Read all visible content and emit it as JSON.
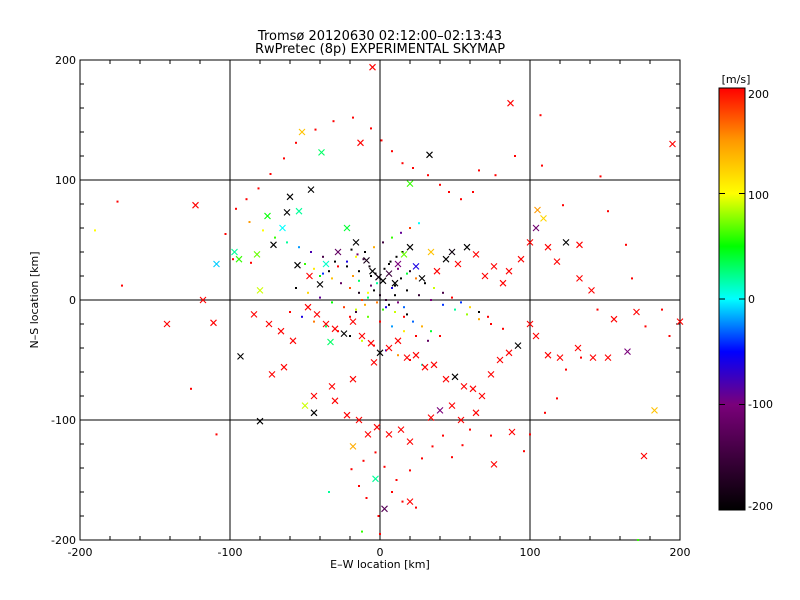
{
  "chart_data": {
    "type": "scatter",
    "title": "Tromsø 20120630 02:12:00–02:13:43",
    "subtitle": "RwPretec (8p) EXPERIMENTAL SKYMAP",
    "xlabel": "E–W location [km]",
    "ylabel": "N–S location [km]",
    "xlim": [
      -200,
      200
    ],
    "ylim": [
      -200,
      200
    ],
    "xticks": [
      "-200",
      "-100",
      "0",
      "100",
      "200"
    ],
    "yticks": [
      "-200",
      "-100",
      "0",
      "100",
      "200"
    ],
    "grid": true,
    "colorbar": {
      "label": "[m/s]",
      "range": [
        -200,
        200
      ],
      "ticks": [
        "200",
        "100",
        "0",
        "-100",
        "-200"
      ],
      "colormap": [
        "#000000",
        "#3c003c",
        "#7a007a",
        "#0000ff",
        "#00ffff",
        "#00ff00",
        "#ffff00",
        "#ff9900",
        "#ff0000"
      ]
    },
    "markers": {
      "cross": "estimate (×)",
      "dot": "estimate (·)"
    },
    "crosses": [
      [
        87,
        164,
        200
      ],
      [
        -33,
        -35,
        30
      ],
      [
        -123,
        79,
        200
      ],
      [
        -39,
        123,
        30
      ],
      [
        -111,
        -19,
        200
      ],
      [
        -142,
        -20,
        200
      ],
      [
        -93,
        -47,
        -200
      ],
      [
        -80,
        -101,
        -200
      ],
      [
        -52,
        140,
        130
      ],
      [
        -13,
        131,
        200
      ],
      [
        -46,
        92,
        -200
      ],
      [
        -60,
        86,
        -200
      ],
      [
        20,
        97,
        60
      ],
      [
        -5,
        194,
        200
      ],
      [
        33,
        121,
        -200
      ],
      [
        3,
        -174,
        -130
      ],
      [
        20,
        -168,
        200
      ],
      [
        -18,
        -122,
        140
      ],
      [
        -3,
        -149,
        20
      ],
      [
        105,
        75,
        150
      ],
      [
        109,
        68,
        120
      ],
      [
        88,
        -110,
        200
      ],
      [
        76,
        -137,
        200
      ],
      [
        176,
        -130,
        200
      ],
      [
        -62,
        73,
        -200
      ],
      [
        -54,
        74,
        20
      ],
      [
        -80,
        8,
        90
      ],
      [
        -109,
        30,
        -10
      ],
      [
        -94,
        34,
        60
      ],
      [
        -97,
        40,
        20
      ],
      [
        -82,
        38,
        70
      ],
      [
        -71,
        46,
        -200
      ],
      [
        -65,
        60,
        0
      ],
      [
        -75,
        70,
        50
      ],
      [
        -55,
        29,
        -200
      ],
      [
        -47,
        20,
        200
      ],
      [
        -40,
        13,
        -200
      ],
      [
        -36,
        30,
        10
      ],
      [
        -28,
        40,
        -120
      ],
      [
        -22,
        60,
        40
      ],
      [
        -16,
        48,
        -200
      ],
      [
        -9,
        33,
        -180
      ],
      [
        -5,
        24,
        -200
      ],
      [
        -1,
        19,
        -190
      ],
      [
        2,
        16,
        -200
      ],
      [
        6,
        22,
        -150
      ],
      [
        10,
        14,
        -200
      ],
      [
        12,
        30,
        -100
      ],
      [
        16,
        38,
        70
      ],
      [
        20,
        44,
        -200
      ],
      [
        24,
        28,
        -60
      ],
      [
        28,
        18,
        -200
      ],
      [
        34,
        40,
        130
      ],
      [
        38,
        24,
        200
      ],
      [
        44,
        34,
        -200
      ],
      [
        48,
        40,
        -190
      ],
      [
        52,
        30,
        200
      ],
      [
        58,
        44,
        -200
      ],
      [
        64,
        38,
        200
      ],
      [
        70,
        20,
        200
      ],
      [
        76,
        28,
        200
      ],
      [
        82,
        14,
        200
      ],
      [
        86,
        24,
        200
      ],
      [
        94,
        34,
        200
      ],
      [
        100,
        48,
        200
      ],
      [
        104,
        60,
        -110
      ],
      [
        112,
        44,
        200
      ],
      [
        118,
        32,
        200
      ],
      [
        124,
        48,
        -200
      ],
      [
        133,
        46,
        200
      ],
      [
        133,
        18,
        200
      ],
      [
        141,
        8,
        200
      ],
      [
        -48,
        -6,
        200
      ],
      [
        -42,
        -12,
        200
      ],
      [
        -36,
        -20,
        200
      ],
      [
        -30,
        -24,
        200
      ],
      [
        -24,
        -28,
        -200
      ],
      [
        -18,
        -18,
        200
      ],
      [
        -12,
        -30,
        200
      ],
      [
        -6,
        -36,
        200
      ],
      [
        0,
        -44,
        -200
      ],
      [
        6,
        -40,
        200
      ],
      [
        12,
        -34,
        200
      ],
      [
        18,
        -48,
        200
      ],
      [
        24,
        -46,
        200
      ],
      [
        30,
        -56,
        200
      ],
      [
        36,
        -54,
        200
      ],
      [
        44,
        -66,
        200
      ],
      [
        50,
        -64,
        -200
      ],
      [
        56,
        -72,
        200
      ],
      [
        62,
        -74,
        200
      ],
      [
        68,
        -80,
        200
      ],
      [
        74,
        -62,
        200
      ],
      [
        80,
        -50,
        200
      ],
      [
        86,
        -44,
        200
      ],
      [
        92,
        -38,
        -200
      ],
      [
        100,
        -20,
        200
      ],
      [
        104,
        -30,
        200
      ],
      [
        112,
        -46,
        200
      ],
      [
        120,
        -48,
        200
      ],
      [
        132,
        -40,
        200
      ],
      [
        142,
        -48,
        200
      ],
      [
        152,
        -48,
        200
      ],
      [
        165,
        -43,
        -100
      ],
      [
        156,
        -16,
        200
      ],
      [
        171,
        -10,
        200
      ],
      [
        -4,
        -52,
        200
      ],
      [
        -18,
        -66,
        200
      ],
      [
        -32,
        -72,
        200
      ],
      [
        -44,
        -80,
        200
      ],
      [
        -50,
        -88,
        90
      ],
      [
        -44,
        -94,
        -200
      ],
      [
        -30,
        -84,
        200
      ],
      [
        -22,
        -96,
        200
      ],
      [
        -14,
        -100,
        200
      ],
      [
        -8,
        -112,
        200
      ],
      [
        -2,
        -106,
        200
      ],
      [
        6,
        -112,
        200
      ],
      [
        14,
        -108,
        200
      ],
      [
        20,
        -118,
        200
      ],
      [
        34,
        -98,
        200
      ],
      [
        40,
        -92,
        -100
      ],
      [
        48,
        -88,
        200
      ],
      [
        54,
        -100,
        200
      ],
      [
        64,
        -94,
        200
      ],
      [
        -72,
        -62,
        200
      ],
      [
        -64,
        -56,
        200
      ],
      [
        -58,
        -34,
        200
      ],
      [
        -66,
        -26,
        200
      ],
      [
        -74,
        -20,
        200
      ],
      [
        -84,
        -12,
        200
      ],
      [
        183,
        -92,
        130
      ],
      [
        200,
        -18,
        200
      ],
      [
        195,
        130,
        200
      ],
      [
        -118,
        0,
        200
      ]
    ],
    "dots": [
      [
        -103,
        55,
        200
      ],
      [
        -98,
        34,
        200
      ],
      [
        -86,
        31,
        200
      ],
      [
        -109,
        -112,
        200
      ],
      [
        -172,
        12,
        200
      ],
      [
        -175,
        82,
        200
      ],
      [
        -190,
        58,
        100
      ],
      [
        -126,
        -74,
        200
      ],
      [
        107,
        154,
        200
      ],
      [
        122,
        79,
        200
      ],
      [
        147,
        103,
        200
      ],
      [
        77,
        104,
        200
      ],
      [
        145,
        -8,
        200
      ],
      [
        134,
        -48,
        200
      ],
      [
        124,
        -58,
        200
      ],
      [
        118,
        -82,
        200
      ],
      [
        110,
        -94,
        200
      ],
      [
        100,
        -112,
        200
      ],
      [
        96,
        -126,
        200
      ],
      [
        74,
        -113,
        200
      ],
      [
        60,
        -108,
        200
      ],
      [
        55,
        -121,
        200
      ],
      [
        48,
        -131,
        200
      ],
      [
        42,
        -113,
        200
      ],
      [
        35,
        -122,
        200
      ],
      [
        28,
        -132,
        200
      ],
      [
        20,
        -142,
        200
      ],
      [
        11,
        -150,
        200
      ],
      [
        3,
        -139,
        200
      ],
      [
        -3,
        -127,
        200
      ],
      [
        -11,
        -134,
        200
      ],
      [
        -19,
        -141,
        200
      ],
      [
        -14,
        -155,
        200
      ],
      [
        -9,
        -165,
        200
      ],
      [
        -1,
        -180,
        200
      ],
      [
        8,
        -160,
        200
      ],
      [
        15,
        -168,
        200
      ],
      [
        -34,
        -160,
        20
      ],
      [
        -12,
        -193,
        60
      ],
      [
        0,
        -195,
        200
      ],
      [
        24,
        -173,
        200
      ],
      [
        172,
        -200,
        60
      ],
      [
        193,
        -30,
        200
      ],
      [
        188,
        -8,
        200
      ],
      [
        177,
        -22,
        200
      ],
      [
        168,
        18,
        200
      ],
      [
        164,
        46,
        200
      ],
      [
        152,
        74,
        200
      ],
      [
        108,
        112,
        200
      ],
      [
        90,
        120,
        200
      ],
      [
        66,
        108,
        200
      ],
      [
        62,
        90,
        200
      ],
      [
        54,
        84,
        200
      ],
      [
        46,
        90,
        200
      ],
      [
        40,
        96,
        200
      ],
      [
        32,
        104,
        200
      ],
      [
        22,
        110,
        200
      ],
      [
        15,
        114,
        200
      ],
      [
        8,
        124,
        200
      ],
      [
        1,
        133,
        200
      ],
      [
        -6,
        143,
        200
      ],
      [
        -18,
        152,
        200
      ],
      [
        -31,
        149,
        200
      ],
      [
        -43,
        142,
        200
      ],
      [
        -56,
        131,
        200
      ],
      [
        -64,
        118,
        200
      ],
      [
        -73,
        105,
        200
      ],
      [
        -81,
        93,
        200
      ],
      [
        -89,
        84,
        200
      ],
      [
        -96,
        76,
        200
      ],
      [
        -87,
        65,
        150
      ],
      [
        -78,
        58,
        100
      ],
      [
        -70,
        52,
        60
      ],
      [
        -62,
        48,
        20
      ],
      [
        -54,
        44,
        -20
      ],
      [
        -46,
        40,
        -80
      ],
      [
        -38,
        36,
        -140
      ],
      [
        -30,
        32,
        -200
      ],
      [
        -22,
        28,
        -200
      ],
      [
        -14,
        24,
        -200
      ],
      [
        -6,
        20,
        -200
      ],
      [
        2,
        16,
        -200
      ],
      [
        10,
        12,
        -200
      ],
      [
        18,
        8,
        -200
      ],
      [
        26,
        4,
        -160
      ],
      [
        34,
        0,
        -100
      ],
      [
        42,
        -4,
        -40
      ],
      [
        50,
        -8,
        20
      ],
      [
        58,
        -12,
        80
      ],
      [
        66,
        -16,
        140
      ],
      [
        74,
        -20,
        200
      ],
      [
        82,
        -24,
        200
      ],
      [
        -50,
        30,
        60
      ],
      [
        -44,
        26,
        110
      ],
      [
        -38,
        22,
        -40
      ],
      [
        -32,
        18,
        130
      ],
      [
        -26,
        14,
        -120
      ],
      [
        -20,
        10,
        170
      ],
      [
        -14,
        6,
        -180
      ],
      [
        -8,
        2,
        30
      ],
      [
        -2,
        -2,
        160
      ],
      [
        4,
        -6,
        -60
      ],
      [
        10,
        -10,
        90
      ],
      [
        16,
        -14,
        200
      ],
      [
        22,
        -18,
        -30
      ],
      [
        28,
        -22,
        140
      ],
      [
        34,
        -26,
        40
      ],
      [
        40,
        -30,
        200
      ],
      [
        -56,
        10,
        -200
      ],
      [
        -48,
        6,
        120
      ],
      [
        -40,
        2,
        -90
      ],
      [
        -32,
        -2,
        50
      ],
      [
        -24,
        -6,
        180
      ],
      [
        -16,
        -10,
        -150
      ],
      [
        -8,
        -14,
        70
      ],
      [
        0,
        -18,
        200
      ],
      [
        8,
        -22,
        -20
      ],
      [
        16,
        -26,
        110
      ],
      [
        24,
        -30,
        200
      ],
      [
        32,
        -34,
        -120
      ],
      [
        -60,
        -10,
        200
      ],
      [
        -52,
        -14,
        -60
      ],
      [
        -44,
        -18,
        160
      ],
      [
        -36,
        -22,
        30
      ],
      [
        -28,
        -26,
        200
      ],
      [
        -20,
        -30,
        -200
      ],
      [
        -12,
        -34,
        90
      ],
      [
        -4,
        -38,
        200
      ],
      [
        4,
        -42,
        -70
      ],
      [
        12,
        -46,
        150
      ],
      [
        20,
        -50,
        200
      ],
      [
        28,
        -54,
        10
      ],
      [
        -10,
        40,
        -200
      ],
      [
        -4,
        44,
        140
      ],
      [
        2,
        48,
        -150
      ],
      [
        8,
        52,
        60
      ],
      [
        14,
        56,
        -90
      ],
      [
        20,
        60,
        180
      ],
      [
        26,
        64,
        0
      ],
      [
        -16,
        36,
        100
      ],
      [
        -22,
        32,
        -60
      ],
      [
        -28,
        28,
        200
      ],
      [
        -34,
        24,
        -200
      ],
      [
        -40,
        20,
        50
      ],
      [
        6,
        30,
        -200
      ],
      [
        12,
        26,
        -100
      ],
      [
        18,
        22,
        40
      ],
      [
        24,
        18,
        160
      ],
      [
        30,
        14,
        -200
      ],
      [
        36,
        10,
        90
      ],
      [
        42,
        6,
        -140
      ],
      [
        48,
        2,
        200
      ],
      [
        54,
        -2,
        -40
      ],
      [
        60,
        -6,
        120
      ],
      [
        66,
        -10,
        -200
      ],
      [
        72,
        -14,
        200
      ],
      [
        -4,
        8,
        -200
      ],
      [
        0,
        4,
        -180
      ],
      [
        4,
        0,
        -160
      ],
      [
        -6,
        12,
        -120
      ],
      [
        6,
        -4,
        -200
      ],
      [
        -2,
        14,
        20
      ],
      [
        2,
        -8,
        60
      ],
      [
        -8,
        6,
        100
      ],
      [
        8,
        10,
        -60
      ],
      [
        -10,
        -4,
        140
      ],
      [
        10,
        4,
        -200
      ],
      [
        -12,
        0,
        180
      ],
      [
        12,
        -2,
        -100
      ],
      [
        -14,
        16,
        30
      ],
      [
        14,
        18,
        -200
      ],
      [
        -16,
        -8,
        90
      ],
      [
        16,
        -6,
        -30
      ],
      [
        -18,
        20,
        150
      ],
      [
        18,
        -12,
        -200
      ],
      [
        -20,
        -14,
        200
      ],
      [
        20,
        24,
        -170
      ],
      [
        -3,
        22,
        -200
      ],
      [
        3,
        26,
        -200
      ],
      [
        -7,
        28,
        -190
      ],
      [
        7,
        32,
        -200
      ],
      [
        -11,
        34,
        -150
      ],
      [
        11,
        36,
        -200
      ],
      [
        -15,
        38,
        -110
      ],
      [
        15,
        40,
        -200
      ],
      [
        -19,
        42,
        -200
      ]
    ]
  }
}
